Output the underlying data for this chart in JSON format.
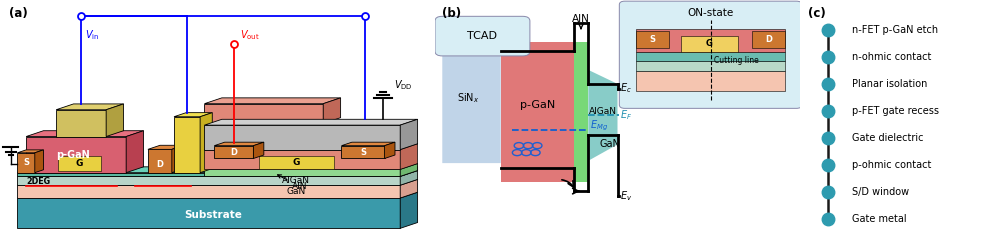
{
  "panel_a_label": "(a)",
  "panel_b_label": "(b)",
  "panel_c_label": "(c)",
  "panel_c_items": [
    "n-FET p-GaN etch",
    "n-ohmic contact",
    "Planar isolation",
    "p-FET gate recess",
    "Gate dielectric",
    "p-ohmic contact",
    "S/D window",
    "Gate metal"
  ],
  "dot_color": "#2E9BAF",
  "line_color": "#1a1a1a",
  "bg_color": "#ffffff",
  "panel_b_tcad_label": "TCAD",
  "panel_b_onstate_label": "ON-state",
  "substrate_text": "Substrate",
  "gan_text": "GaN",
  "algaN_text": "AlGaN",
  "2deg_label": "2DEG"
}
